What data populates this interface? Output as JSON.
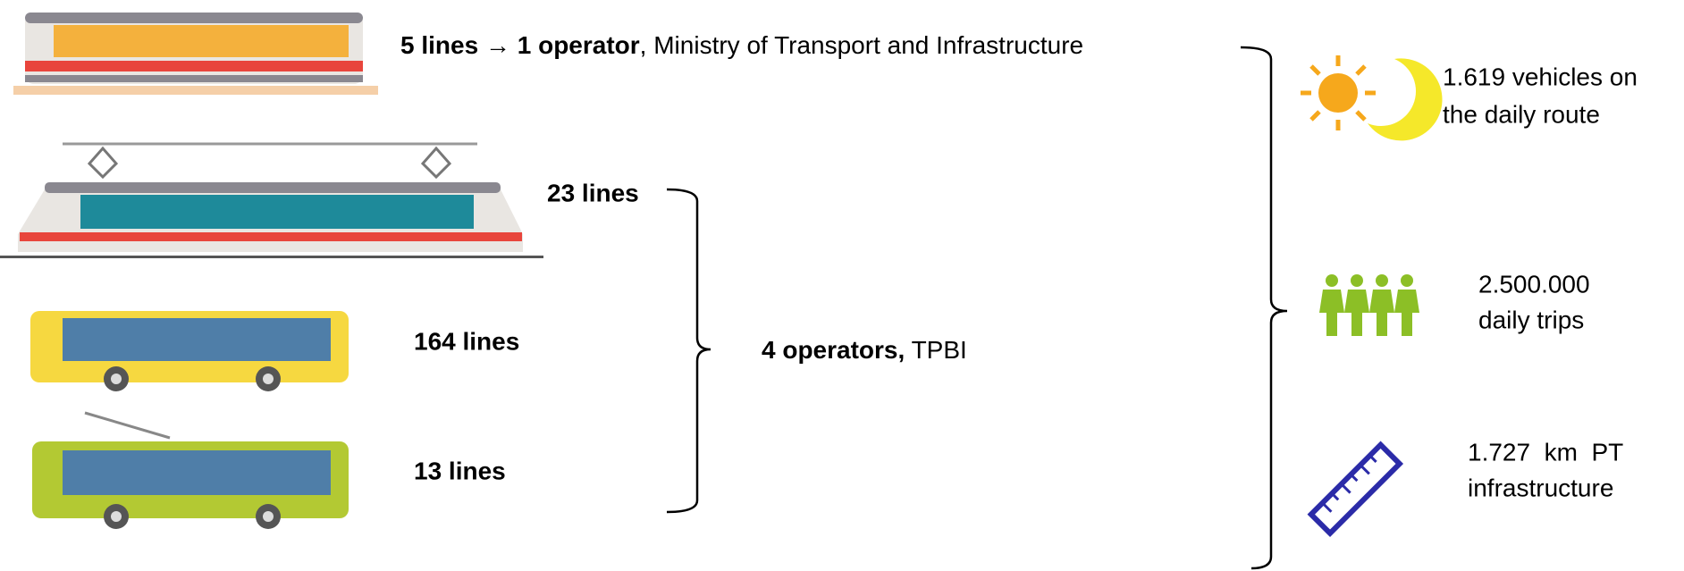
{
  "metro": {
    "lines": "5 lines",
    "arrow": "→",
    "operator": "1 operator",
    "operator_name": ", Ministry of Transport and Infrastructure"
  },
  "tram": {
    "lines": "23 lines"
  },
  "bus": {
    "lines": "164 lines"
  },
  "trolleybus": {
    "lines": "13 lines"
  },
  "group": {
    "operators": "4 operators,",
    "operator_name": "TPBI"
  },
  "stats": [
    {
      "lines": [
        "1.619 vehicles on",
        "the daily route"
      ]
    },
    {
      "lines": [
        "2.500.000",
        "daily trips"
      ]
    },
    {
      "lines": [
        "1.727  km  PT",
        "infrastructure"
      ]
    }
  ]
}
